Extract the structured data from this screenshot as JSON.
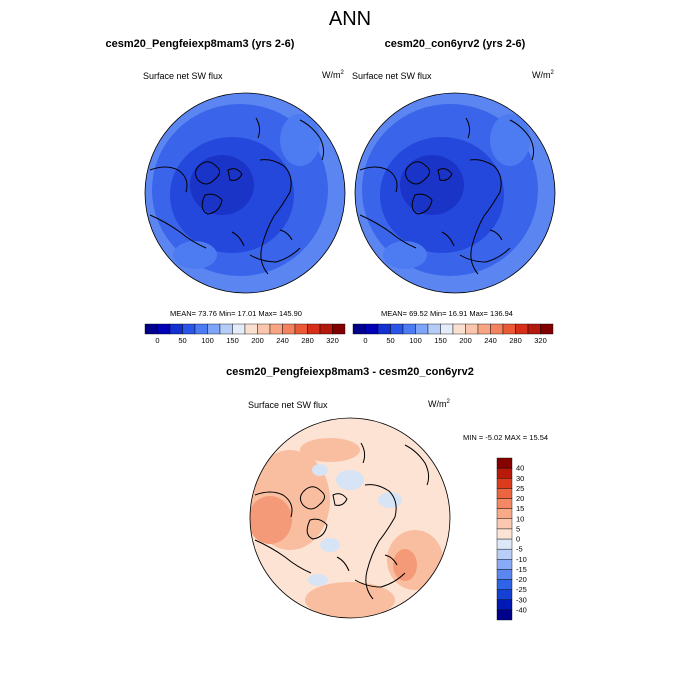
{
  "page_title": "ANN",
  "panels": [
    {
      "title": "cesm20_Pengfeiexp8mam3 (yrs 2-6)",
      "variable": "Surface net SW flux",
      "units_base": "W/m",
      "units_exp": "2",
      "stats": "MEAN=  73.76  Min=  17.01  Max= 145.90"
    },
    {
      "title": "cesm20_con6yrv2 (yrs 2-6)",
      "variable": "Surface net SW flux",
      "units_base": "W/m",
      "units_exp": "2",
      "stats": "MEAN=  69.52  Min=  16.91  Max= 136.94"
    }
  ],
  "diff_panel": {
    "title": "cesm20_Pengfeiexp8mam3 - cesm20_con6yrv2",
    "variable": "Surface net SW flux",
    "units_base": "W/m",
    "units_exp": "2",
    "stats": "MIN =  -5.02 MAX =  15.54"
  },
  "colorbar_abs": {
    "colors": [
      "#00008c",
      "#0000b4",
      "#1430d2",
      "#2a55e8",
      "#4d7cf2",
      "#7ea4f7",
      "#b4ccf8",
      "#e3ecf8",
      "#fbe0d2",
      "#fcc5ad",
      "#f8a584",
      "#f4825f",
      "#ea5a35",
      "#d6301a",
      "#b41a0c",
      "#800000"
    ],
    "labels": [
      "0",
      "50",
      "100",
      "150",
      "200",
      "240",
      "280",
      "320"
    ]
  },
  "colorbar_diff": {
    "colors": [
      "#00008c",
      "#0018b4",
      "#1440d4",
      "#2f63e8",
      "#5a88f0",
      "#89aaf4",
      "#b8cef6",
      "#dce8f8",
      "#fbe4d6",
      "#fac8ae",
      "#f8a988",
      "#f48864",
      "#ec6440",
      "#dc3c1e",
      "#b81a0a",
      "#860000"
    ],
    "labels": [
      "-40",
      "-30",
      "-25",
      "-20",
      "-15",
      "-10",
      "-5",
      "0",
      "5",
      "10",
      "15",
      "20",
      "25",
      "30",
      "40"
    ]
  },
  "colors": {
    "land_outline": "#000000",
    "ocean_dark": "#1f3fd8",
    "ocean_mid": "#3a64ea",
    "ocean_light": "#5b85f0",
    "diff_pos_light": "#fde3d3",
    "diff_pos": "#f9bea0",
    "diff_pos_strong": "#f49a78",
    "diff_neg": "#d6e4f6"
  }
}
